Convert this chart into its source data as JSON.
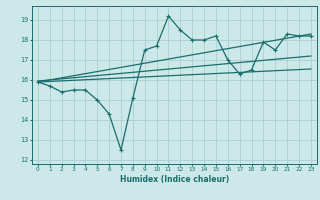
{
  "xlabel": "Humidex (Indice chaleur)",
  "xlim": [
    -0.5,
    23.5
  ],
  "ylim": [
    11.8,
    19.7
  ],
  "yticks": [
    12,
    13,
    14,
    15,
    16,
    17,
    18,
    19
  ],
  "xticks": [
    0,
    1,
    2,
    3,
    4,
    5,
    6,
    7,
    8,
    9,
    10,
    11,
    12,
    13,
    14,
    15,
    16,
    17,
    18,
    19,
    20,
    21,
    22,
    23
  ],
  "bg_color": "#cce8e8",
  "grid_color": "#aacfcf",
  "line_color": "#1a6e6e",
  "line1_x": [
    0,
    1,
    2,
    3,
    4,
    5,
    6,
    7,
    8,
    9,
    10,
    11,
    12,
    13,
    14,
    15,
    16,
    17,
    18,
    19,
    20,
    21,
    22,
    23
  ],
  "line1_y": [
    15.9,
    15.7,
    15.4,
    15.5,
    15.5,
    15.0,
    14.3,
    12.5,
    15.1,
    17.5,
    17.7,
    19.2,
    18.5,
    18.0,
    18.0,
    18.2,
    17.0,
    16.3,
    16.5,
    17.9,
    17.5,
    18.3,
    18.2,
    18.2
  ],
  "line2_x": [
    0,
    23
  ],
  "line2_y": [
    15.9,
    18.3
  ],
  "line3_x": [
    0,
    23
  ],
  "line3_y": [
    15.95,
    17.2
  ],
  "line4_x": [
    0,
    23
  ],
  "line4_y": [
    15.9,
    16.55
  ],
  "tick_fontsize": 4.2,
  "xlabel_fontsize": 5.5,
  "lw": 0.9
}
